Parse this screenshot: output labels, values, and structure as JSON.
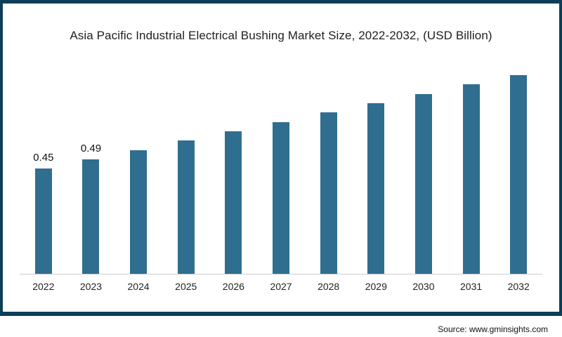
{
  "chart_data": {
    "type": "bar",
    "title": "Asia Pacific Industrial Electrical Bushing Market Size, 2022-2032, (USD Billion)",
    "categories": [
      "2022",
      "2023",
      "2024",
      "2025",
      "2026",
      "2027",
      "2028",
      "2029",
      "2030",
      "2031",
      "2032"
    ],
    "values": [
      0.45,
      0.49,
      0.53,
      0.57,
      0.61,
      0.65,
      0.69,
      0.73,
      0.77,
      0.81,
      0.85
    ],
    "data_labels": {
      "2022": "0.45",
      "2023": "0.49"
    },
    "xlabel": "",
    "ylabel": "",
    "ylim": [
      0,
      0.9
    ],
    "bar_color": "#306e90",
    "axis_line_color": "#c9cdd1",
    "grid": false,
    "legend_position": "none"
  },
  "source": {
    "label": "Source: www.gminsights.com"
  },
  "frame": {
    "border_color": "#0e3e58",
    "background_color": "#ffffff"
  }
}
